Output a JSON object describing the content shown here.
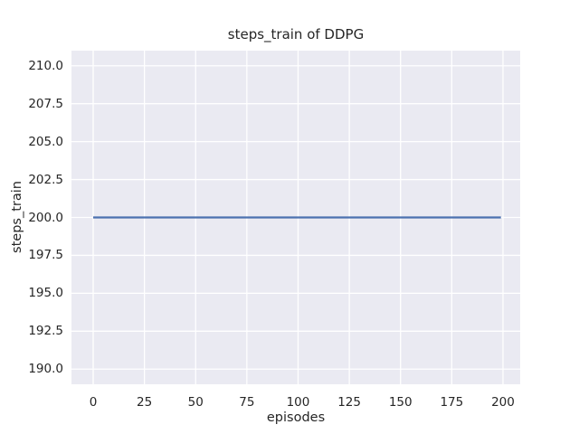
{
  "chart_data": {
    "type": "line",
    "title": "steps_train of DDPG",
    "xlabel": "episodes",
    "ylabel": "steps_train",
    "x_ticks": [
      0,
      25,
      50,
      75,
      100,
      125,
      150,
      175,
      200
    ],
    "x_tick_labels": [
      "0",
      "25",
      "50",
      "75",
      "100",
      "125",
      "150",
      "175",
      "200"
    ],
    "y_ticks": [
      210.0,
      207.5,
      205.0,
      202.5,
      200.0,
      197.5,
      195.0,
      192.5,
      190.0
    ],
    "y_tick_labels": [
      "210.0",
      "207.5",
      "205.0",
      "202.5",
      "200.0",
      "197.5",
      "195.0",
      "192.5",
      "190.0"
    ],
    "xlim": [
      -10.6,
      208.4
    ],
    "ylim": [
      189.0,
      211.0
    ],
    "grid": true,
    "legend": false,
    "style": {
      "plot_bg": "#eaeaf2",
      "grid_color": "#ffffff",
      "grid_width": 1.3,
      "text_color": "#262626",
      "line_width": 2.2
    },
    "series": [
      {
        "name": "steps_train",
        "color": "#4c72b0",
        "x": [
          0,
          199
        ],
        "y": [
          200,
          200
        ]
      }
    ]
  }
}
